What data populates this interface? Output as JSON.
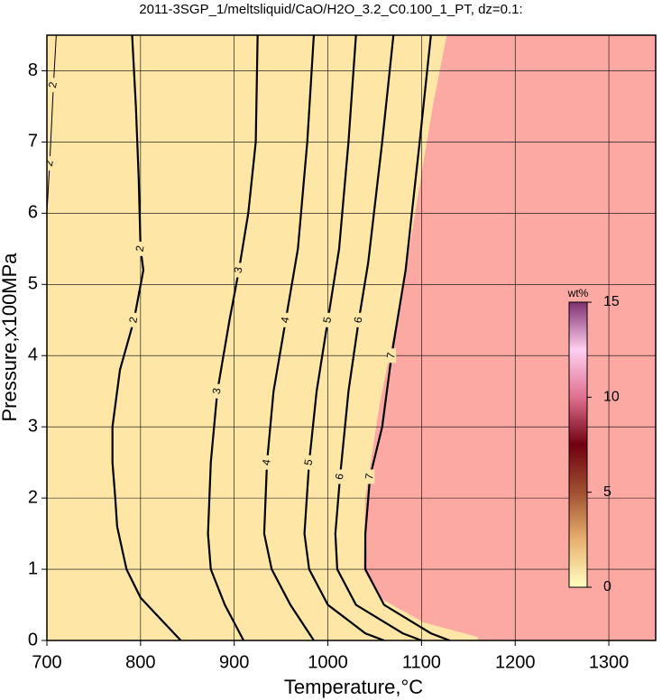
{
  "chart_data": {
    "type": "contour",
    "title": "2011-3SGP_1/meltsliquid/CaO/H2O_3.2_C0.100_1_PT, dz=0.1:",
    "xlabel": "Temperature,°C",
    "ylabel": "Pressure,x100MPa",
    "xlim": [
      700,
      1350
    ],
    "ylim": [
      0,
      8.5
    ],
    "xticks": [
      700,
      800,
      900,
      1000,
      1100,
      1200,
      1300
    ],
    "yticks": [
      0,
      1,
      2,
      3,
      4,
      5,
      6,
      7,
      8
    ],
    "grid": true,
    "background_color": "#fde6a6",
    "line_color": "#000000",
    "fill_region": {
      "color": "#fca9a4",
      "x": [
        1127,
        1112,
        1078,
        1055,
        1040,
        1038,
        1055,
        1103,
        1160,
        1160
      ],
      "y": [
        8.5,
        7.5,
        4.8,
        3.3,
        2.0,
        1.0,
        0.6,
        0.25,
        0.05,
        0
      ]
    },
    "contours": [
      {
        "level": 2,
        "x": [
          791,
          795,
          798,
          800,
          803,
          793,
          778,
          770,
          770,
          773,
          775,
          785,
          800,
          825,
          843
        ],
        "y": [
          8.5,
          7.5,
          6.5,
          5.5,
          5.2,
          4.5,
          3.8,
          3.0,
          2.5,
          2.0,
          1.6,
          1.0,
          0.6,
          0.25,
          0
        ]
      },
      {
        "level": 2,
        "x": [
          710,
          707,
          703,
          700
        ],
        "y": [
          8.5,
          7.8,
          6.7,
          6.0
        ]
      },
      {
        "level": 3,
        "x": [
          925,
          923,
          915,
          905,
          895,
          882,
          875,
          872,
          875,
          890,
          910
        ],
        "y": [
          8.5,
          7.0,
          6.0,
          5.2,
          4.5,
          3.5,
          2.5,
          1.5,
          1.0,
          0.5,
          0
        ]
      },
      {
        "level": 4,
        "x": [
          985,
          978,
          968,
          955,
          942,
          935,
          932,
          940,
          960,
          985
        ],
        "y": [
          8.5,
          7.0,
          5.5,
          4.5,
          3.5,
          2.5,
          1.5,
          1.0,
          0.5,
          0
        ]
      },
      {
        "level": 5,
        "x": [
          1030,
          1022,
          1012,
          1000,
          988,
          980,
          975,
          980,
          1000,
          1040,
          1060
        ],
        "y": [
          8.5,
          7.0,
          5.5,
          4.5,
          3.5,
          2.5,
          1.5,
          1.0,
          0.5,
          0.1,
          0
        ]
      },
      {
        "level": 6,
        "x": [
          1070,
          1058,
          1043,
          1033,
          1022,
          1013,
          1008,
          1010,
          1030,
          1080,
          1100
        ],
        "y": [
          8.5,
          7.0,
          5.3,
          4.5,
          3.5,
          2.3,
          1.5,
          1.0,
          0.5,
          0.1,
          0
        ]
      },
      {
        "level": 7,
        "x": [
          1110,
          1098,
          1083,
          1068,
          1058,
          1045,
          1040,
          1040,
          1060,
          1110,
          1130
        ],
        "y": [
          8.5,
          7.0,
          5.2,
          4.0,
          3.0,
          2.3,
          1.5,
          1.0,
          0.5,
          0.1,
          0
        ]
      }
    ],
    "colorbar": {
      "label": "wt%",
      "lim": [
        0,
        15
      ],
      "ticks": [
        0,
        5,
        10,
        15
      ],
      "colors": [
        "#ffffc0",
        "#e8b070",
        "#a05030",
        "#700010",
        "#e07090",
        "#ffd0f0",
        "#803070"
      ]
    }
  }
}
